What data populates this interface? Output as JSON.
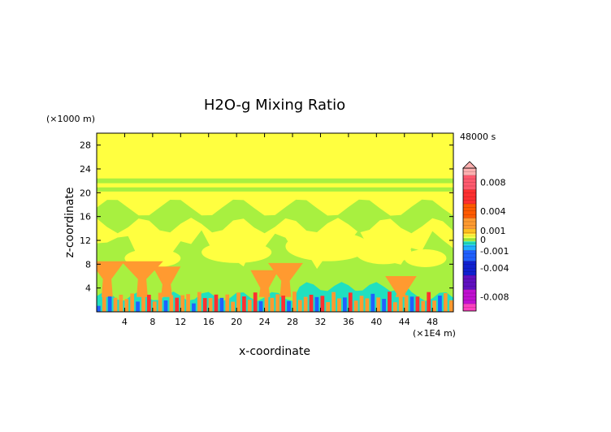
{
  "chart_data": {
    "type": "heatmap",
    "title": "H2O-g Mixing Ratio",
    "time_label": "48000 s",
    "xlabel": "x-coordinate",
    "ylabel": "z-coordinate",
    "x_units": "(×1E4 m)",
    "y_units": "(×1000 m)",
    "xlim": [
      0,
      51
    ],
    "ylim": [
      0,
      30
    ],
    "x_ticks": [
      4,
      8,
      12,
      16,
      20,
      24,
      28,
      32,
      36,
      40,
      44,
      48
    ],
    "y_ticks": [
      4,
      8,
      12,
      16,
      20,
      24,
      28
    ],
    "colorbar": {
      "labels": [
        "0.008",
        "0.004",
        "0.001",
        "0",
        "-0.001",
        "-0.004",
        "-0.008"
      ],
      "label_values": [
        0.008,
        0.004,
        0.001,
        0,
        -0.001,
        -0.004,
        -0.008
      ],
      "range": [
        -0.01,
        0.01
      ],
      "extend": "max",
      "colors": [
        {
          "value": 0.01,
          "color": "#ffb0b0"
        },
        {
          "value": 0.008,
          "color": "#ff5a6e"
        },
        {
          "value": 0.006,
          "color": "#ff3030"
        },
        {
          "value": 0.004,
          "color": "#ff5a00"
        },
        {
          "value": 0.002,
          "color": "#ff9a30"
        },
        {
          "value": 0.001,
          "color": "#ffc020"
        },
        {
          "value": 0.0005,
          "color": "#ffff40"
        },
        {
          "value": 0.0,
          "color": "#a8f040"
        },
        {
          "value": -0.0005,
          "color": "#20e0c0"
        },
        {
          "value": -0.001,
          "color": "#20b0ff"
        },
        {
          "value": -0.002,
          "color": "#2060ff"
        },
        {
          "value": -0.004,
          "color": "#1020d0"
        },
        {
          "value": -0.006,
          "color": "#6010c0"
        },
        {
          "value": -0.008,
          "color": "#c010d0"
        },
        {
          "value": -0.01,
          "color": "#ff40c0"
        }
      ]
    },
    "field_colors": {
      "yellow": "#ffff40",
      "green": "#a8f040",
      "orange": "#ff9a30",
      "cyan": "#20e0c0",
      "red": "#ff3030",
      "blue": "#2060ff"
    }
  }
}
